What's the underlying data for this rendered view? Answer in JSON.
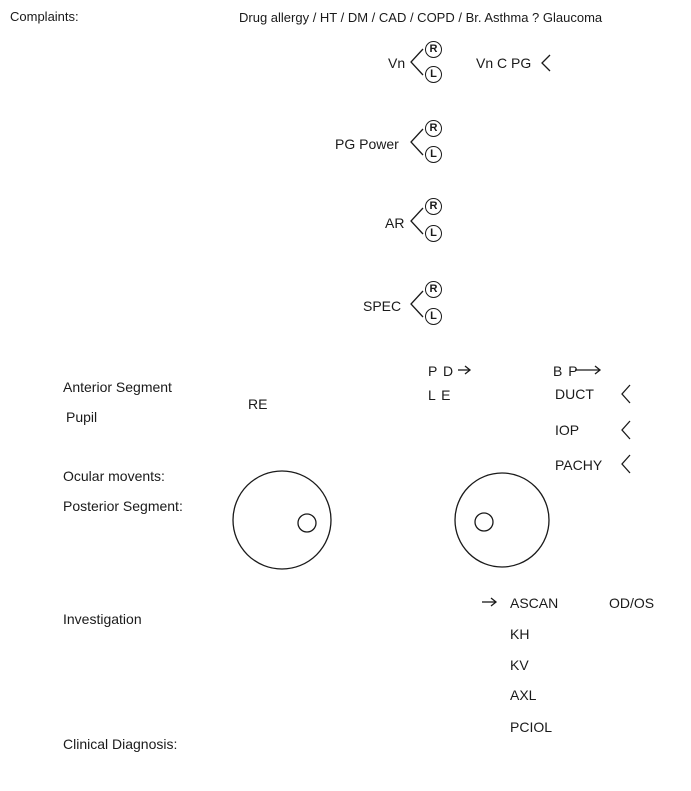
{
  "header": {
    "complaints_label": "Complaints:",
    "history_line": "Drug allergy / HT / DM / CAD / COPD / Br. Asthma ? Glaucoma"
  },
  "right_eye_mark": "R",
  "left_eye_mark": "L",
  "vision": {
    "vn_label": "Vn",
    "vn_c_pg_label": "Vn C PG",
    "pg_power_label": "PG Power",
    "ar_label": "AR",
    "spec_label": "SPEC"
  },
  "measurements": {
    "pd_label": "P D",
    "le_label": "L E",
    "bp_label": "B P",
    "duct_label": "DUCT",
    "iop_label": "IOP",
    "pachy_label": "PACHY"
  },
  "examination": {
    "anterior_segment_label": "Anterior Segment",
    "pupil_label": "Pupil",
    "re_label": "RE",
    "ocular_movements_label": "Ocular movents:",
    "posterior_segment_label": "Posterior Segment:"
  },
  "investigation": {
    "label": "Investigation",
    "items": [
      "ASCAN",
      "KH",
      "KV",
      "AXL",
      "PCIOL"
    ],
    "od_os_label": "OD/OS"
  },
  "diagnosis": {
    "label": "Clinical Diagnosis:"
  }
}
